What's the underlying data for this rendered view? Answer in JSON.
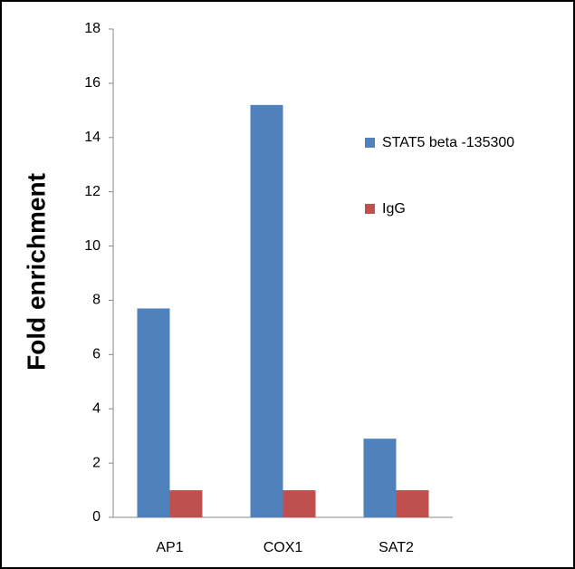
{
  "chart_data": {
    "type": "bar",
    "y_label": "Fold enrichment",
    "categories": [
      "AP1",
      "COX1",
      "SAT2"
    ],
    "series": [
      {
        "name": "STAT5 beta -135300",
        "color": "#4f81bd",
        "values": [
          7.7,
          15.2,
          2.9
        ]
      },
      {
        "name": "IgG",
        "color": "#c0504d",
        "values": [
          1,
          1,
          1
        ]
      }
    ],
    "ylim": [
      0,
      18
    ],
    "yticks": [
      0,
      2,
      4,
      6,
      8,
      10,
      12,
      14,
      16,
      18
    ],
    "grid": false,
    "legend": "right"
  }
}
